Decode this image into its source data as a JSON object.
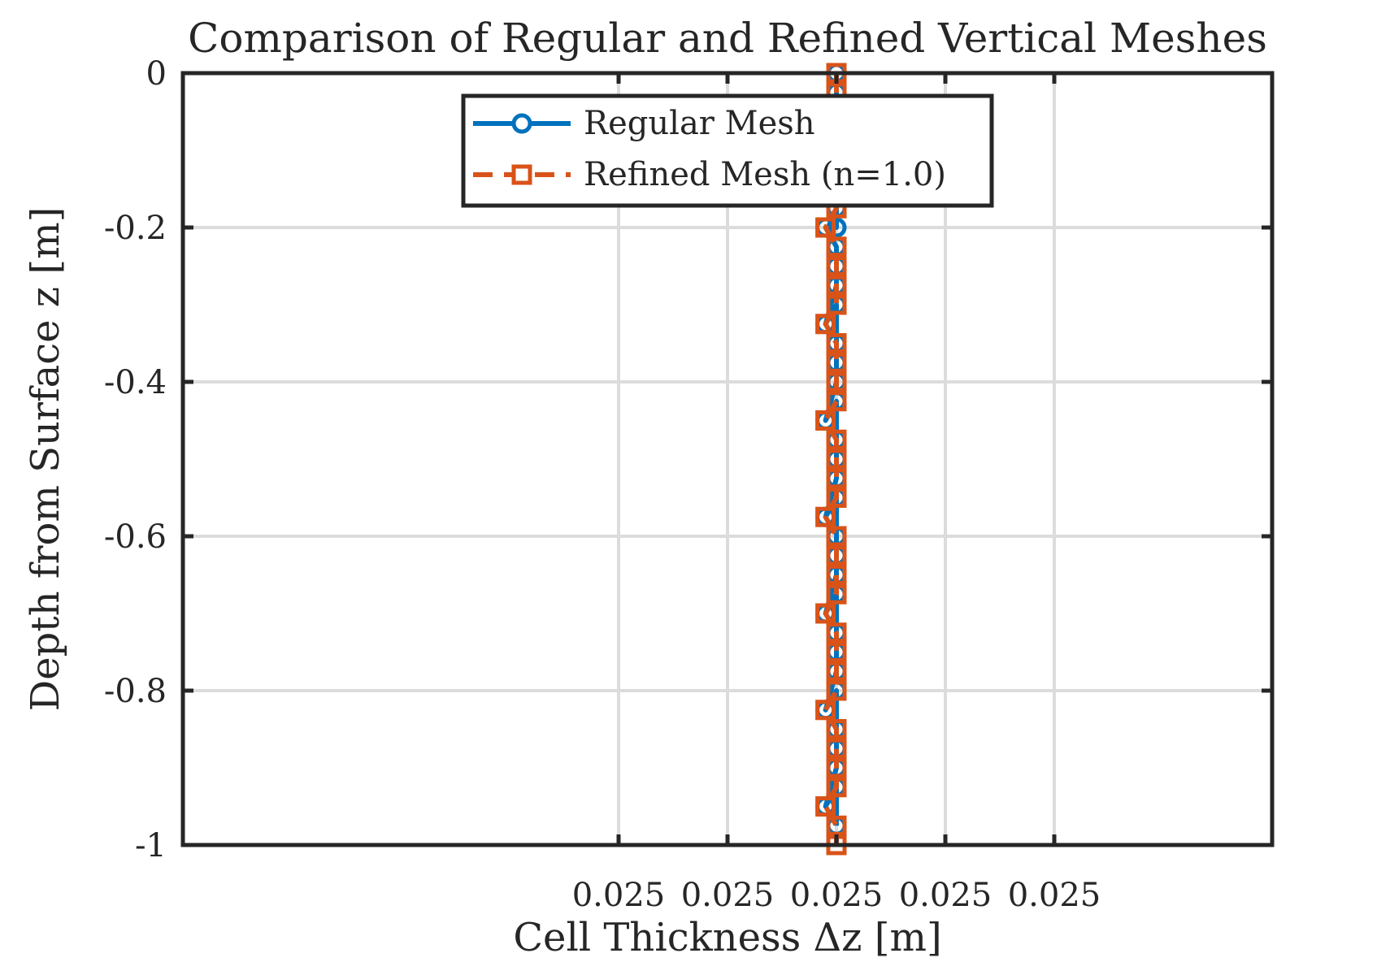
{
  "chart_data": {
    "type": "line",
    "title": "Comparison of Regular and Refined Vertical Meshes",
    "xlabel": "Cell Thickness Δz [m]",
    "ylabel": "Depth from Surface z [m]",
    "xlim": [
      0.02499996,
      0.02500006
    ],
    "ylim": [
      -1,
      0
    ],
    "xticks": [
      0.025,
      0.02500001,
      0.02500002,
      0.02500003,
      0.02500004
    ],
    "xtick_labels": [
      "0.025",
      "0.025",
      "0.025",
      "0.025",
      "0.025"
    ],
    "yticks": [
      0,
      -0.2,
      -0.4,
      -0.6,
      -0.8,
      -1
    ],
    "ytick_labels": [
      "0",
      "-0.2",
      "-0.4",
      "-0.6",
      "-0.8",
      "-1"
    ],
    "grid": true,
    "legend_position": "top-center",
    "series": [
      {
        "name": "Regular Mesh",
        "color": "#0072BD",
        "line_style": "solid",
        "marker": "circle",
        "x": [
          0.02500002,
          0.02500002,
          0.02500002,
          0.02500002,
          0.02500002,
          0.02500002,
          0.02500002,
          0.02500002,
          0.02500002,
          0.025000019,
          0.02500002,
          0.02500002,
          0.02500002,
          0.025000019,
          0.02500002,
          0.02500002,
          0.02500002,
          0.02500002,
          0.025000019,
          0.02500002,
          0.02500002,
          0.02500002,
          0.02500002,
          0.025000019,
          0.02500002,
          0.02500002,
          0.02500002,
          0.02500002,
          0.025000019,
          0.02500002,
          0.02500002,
          0.02500002,
          0.02500002,
          0.025000019,
          0.02500002,
          0.02500002,
          0.02500002,
          0.02500002,
          0.025000019,
          0.02500002,
          0.02500002
        ],
        "y": [
          0,
          -0.025,
          -0.05,
          -0.075,
          -0.1,
          -0.125,
          -0.15,
          -0.175,
          -0.2,
          -0.2,
          -0.225,
          -0.25,
          -0.275,
          -0.325,
          -0.3,
          -0.35,
          -0.375,
          -0.4,
          -0.45,
          -0.425,
          -0.475,
          -0.5,
          -0.525,
          -0.575,
          -0.55,
          -0.6,
          -0.625,
          -0.65,
          -0.7,
          -0.675,
          -0.725,
          -0.75,
          -0.775,
          -0.825,
          -0.8,
          -0.85,
          -0.875,
          -0.9,
          -0.95,
          -0.925,
          -0.975
        ]
      },
      {
        "name": "Refined Mesh (n=1.0)",
        "color": "#D95319",
        "line_style": "dashed",
        "marker": "square",
        "x": [
          0.02500002,
          0.02500002,
          0.02500002,
          0.02500002,
          0.02500002,
          0.02500002,
          0.02500002,
          0.02500002,
          0.025000019,
          0.02500002,
          0.02500002,
          0.02500002,
          0.02500002,
          0.025000019,
          0.02500002,
          0.02500002,
          0.02500002,
          0.02500002,
          0.025000019,
          0.02500002,
          0.02500002,
          0.02500002,
          0.02500002,
          0.025000019,
          0.02500002,
          0.02500002,
          0.02500002,
          0.02500002,
          0.025000019,
          0.02500002,
          0.02500002,
          0.02500002,
          0.02500002,
          0.025000019,
          0.02500002,
          0.02500002,
          0.02500002,
          0.02500002,
          0.025000019,
          0.02500002,
          0.02500002
        ],
        "y": [
          0,
          -0.025,
          -0.05,
          -0.075,
          -0.1,
          -0.125,
          -0.15,
          -0.175,
          -0.2,
          -0.225,
          -0.25,
          -0.275,
          -0.3,
          -0.325,
          -0.35,
          -0.375,
          -0.4,
          -0.425,
          -0.45,
          -0.475,
          -0.5,
          -0.525,
          -0.55,
          -0.575,
          -0.6,
          -0.625,
          -0.65,
          -0.675,
          -0.7,
          -0.725,
          -0.75,
          -0.775,
          -0.8,
          -0.825,
          -0.85,
          -0.875,
          -0.9,
          -0.925,
          -0.95,
          -0.975,
          -1
        ]
      }
    ]
  }
}
